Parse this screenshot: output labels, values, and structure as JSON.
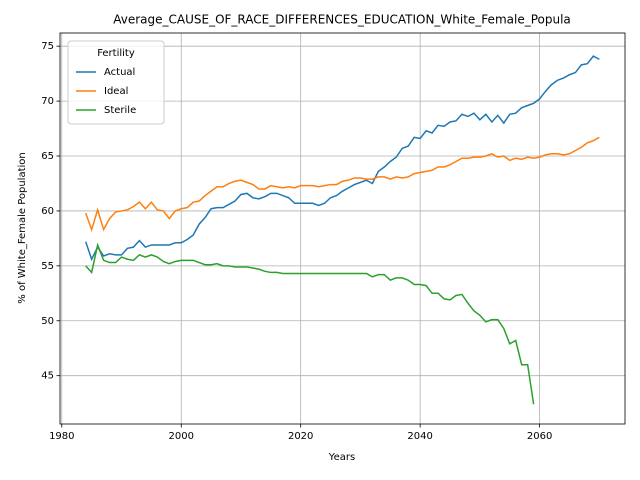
{
  "chart_data": {
    "type": "line",
    "title": "Average_CAUSE_OF_RACE_DIFFERENCES_EDUCATION_White_Female_Popula",
    "xlabel": "Years",
    "ylabel": "% of White_Female Population",
    "legend_title": "Fertility",
    "legend": "upper left",
    "grid": true,
    "x": [
      1984,
      1985,
      1986,
      1987,
      1988,
      1989,
      1990,
      1991,
      1992,
      1993,
      1994,
      1995,
      1996,
      1997,
      1998,
      1999,
      2000,
      2001,
      2002,
      2003,
      2004,
      2005,
      2006,
      2007,
      2008,
      2009,
      2010,
      2011,
      2012,
      2013,
      2014,
      2015,
      2016,
      2017,
      2018,
      2019,
      2020,
      2021,
      2022,
      2023,
      2024,
      2025,
      2026,
      2027,
      2028,
      2029,
      2030,
      2031,
      2032,
      2033,
      2034,
      2035,
      2036,
      2037,
      2038,
      2039,
      2040,
      2041,
      2042,
      2043,
      2044,
      2045,
      2046,
      2047,
      2048,
      2049,
      2050,
      2051,
      2052,
      2053,
      2054,
      2055,
      2056,
      2057,
      2058,
      2059,
      2060,
      2061,
      2062,
      2063,
      2064,
      2065,
      2066,
      2067,
      2068,
      2069,
      2070
    ],
    "series": [
      {
        "name": "Actual",
        "color": "#1f77b4",
        "values": [
          57.2,
          55.6,
          56.7,
          55.9,
          56.1,
          56.0,
          56.0,
          56.6,
          56.7,
          57.3,
          56.7,
          56.9,
          56.9,
          56.9,
          56.9,
          57.1,
          57.1,
          57.4,
          57.8,
          58.8,
          59.4,
          60.2,
          60.3,
          60.3,
          60.6,
          60.9,
          61.5,
          61.6,
          61.2,
          61.1,
          61.3,
          61.6,
          61.6,
          61.4,
          61.2,
          60.7,
          60.7,
          60.7,
          60.7,
          60.5,
          60.7,
          61.2,
          61.4,
          61.8,
          62.1,
          62.4,
          62.6,
          62.8,
          62.5,
          63.6,
          64.0,
          64.5,
          64.9,
          65.7,
          65.9,
          66.7,
          66.6,
          67.3,
          67.1,
          67.8,
          67.7,
          68.1,
          68.2,
          68.8,
          68.6,
          68.9,
          68.3,
          68.8,
          68.1,
          68.7,
          68.0,
          68.8,
          68.9,
          69.4,
          69.6,
          69.8,
          70.2,
          70.9,
          71.5,
          71.9,
          72.1,
          72.4,
          72.6,
          73.3,
          73.4,
          74.1,
          73.8
        ]
      },
      {
        "name": "Ideal",
        "color": "#ff7f0e",
        "values": [
          59.8,
          58.3,
          60.1,
          58.3,
          59.3,
          59.9,
          60.0,
          60.1,
          60.4,
          60.8,
          60.2,
          60.8,
          60.1,
          60.0,
          59.3,
          60.0,
          60.2,
          60.3,
          60.8,
          60.9,
          61.4,
          61.8,
          62.2,
          62.2,
          62.5,
          62.7,
          62.8,
          62.6,
          62.4,
          62.0,
          62.0,
          62.3,
          62.2,
          62.1,
          62.2,
          62.1,
          62.3,
          62.3,
          62.3,
          62.2,
          62.3,
          62.4,
          62.4,
          62.7,
          62.8,
          63.0,
          63.0,
          62.9,
          62.9,
          63.1,
          63.1,
          62.9,
          63.1,
          63.0,
          63.1,
          63.4,
          63.5,
          63.6,
          63.7,
          64.0,
          64.0,
          64.2,
          64.5,
          64.8,
          64.8,
          64.9,
          64.9,
          65.0,
          65.2,
          64.9,
          65.0,
          64.6,
          64.8,
          64.7,
          64.9,
          64.8,
          64.9,
          65.1,
          65.2,
          65.2,
          65.1,
          65.2,
          65.5,
          65.8,
          66.2,
          66.4,
          66.7
        ]
      },
      {
        "name": "Sterile",
        "color": "#2ca02c",
        "values": [
          55.0,
          54.4,
          56.9,
          55.5,
          55.3,
          55.3,
          55.8,
          55.6,
          55.5,
          56.0,
          55.8,
          56.0,
          55.8,
          55.4,
          55.2,
          55.4,
          55.5,
          55.5,
          55.5,
          55.3,
          55.1,
          55.1,
          55.2,
          55.0,
          55.0,
          54.9,
          54.9,
          54.9,
          54.8,
          54.7,
          54.5,
          54.4,
          54.4,
          54.3,
          54.3,
          54.3,
          54.3,
          54.3,
          54.3,
          54.3,
          54.3,
          54.3,
          54.3,
          54.3,
          54.3,
          54.3,
          54.3,
          54.3,
          54.0,
          54.2,
          54.2,
          53.7,
          53.9,
          53.9,
          53.7,
          53.3,
          53.3,
          53.2,
          52.5,
          52.5,
          52.0,
          51.9,
          52.3,
          52.4,
          51.6,
          50.9,
          50.5,
          49.9,
          50.1,
          50.1,
          49.3,
          47.9,
          48.2,
          46.0,
          46.0,
          42.4,
          null,
          null,
          null,
          null,
          null,
          null,
          null,
          null,
          null,
          null,
          null
        ]
      }
    ],
    "xlim": [
      1979.7,
      2074.3
    ],
    "xticks": [
      1980,
      2000,
      2020,
      2040,
      2060
    ],
    "ylim": [
      40.6,
      76.2
    ],
    "yticks": [
      45,
      50,
      55,
      60,
      65,
      70,
      75
    ]
  }
}
